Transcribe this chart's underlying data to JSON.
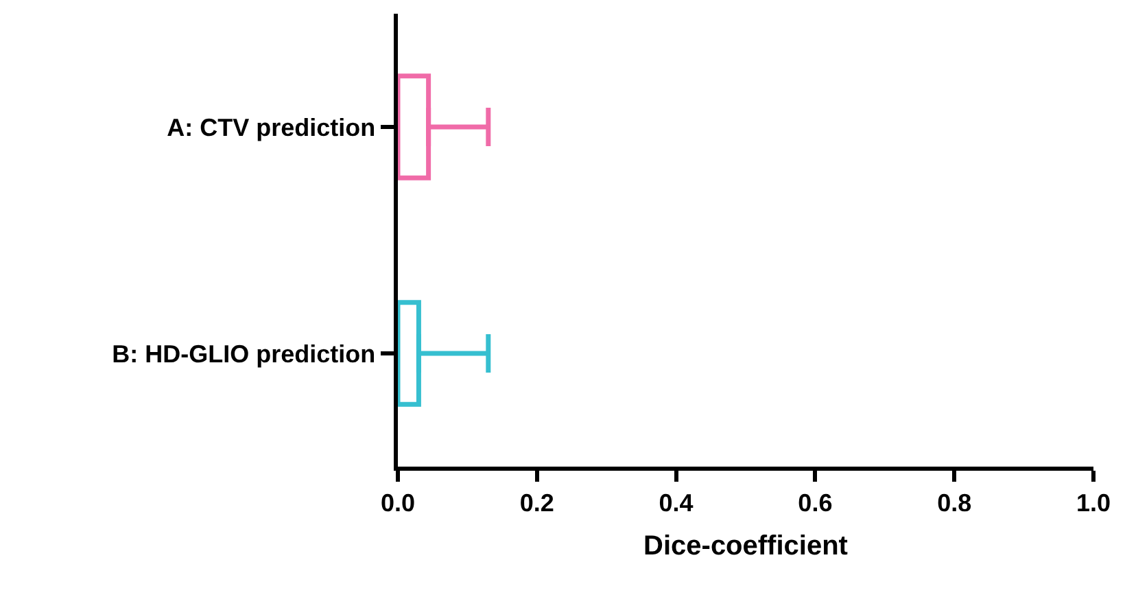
{
  "chart_data": {
    "type": "bar",
    "orientation": "horizontal",
    "xlabel": "Dice-coefficient",
    "categories": [
      "A: CTV prediction",
      "B: HD-GLIO prediction"
    ],
    "values": [
      0.044,
      0.03
    ],
    "colors": [
      "#f06ba8",
      "#36bfd0"
    ],
    "errors": [
      [
        0.044,
        0.13
      ],
      [
        0.03,
        0.13
      ]
    ],
    "xlim": [
      0,
      1
    ],
    "xticks": [
      {
        "value": 0,
        "label": "0.0"
      },
      {
        "value": 0.2,
        "label": "0.2"
      },
      {
        "value": 0.4,
        "label": "0.4"
      },
      {
        "value": 0.6,
        "label": "0.6"
      },
      {
        "value": 0.8,
        "label": "0.8"
      },
      {
        "value": 1,
        "label": "1.0"
      }
    ],
    "legend": false
  }
}
